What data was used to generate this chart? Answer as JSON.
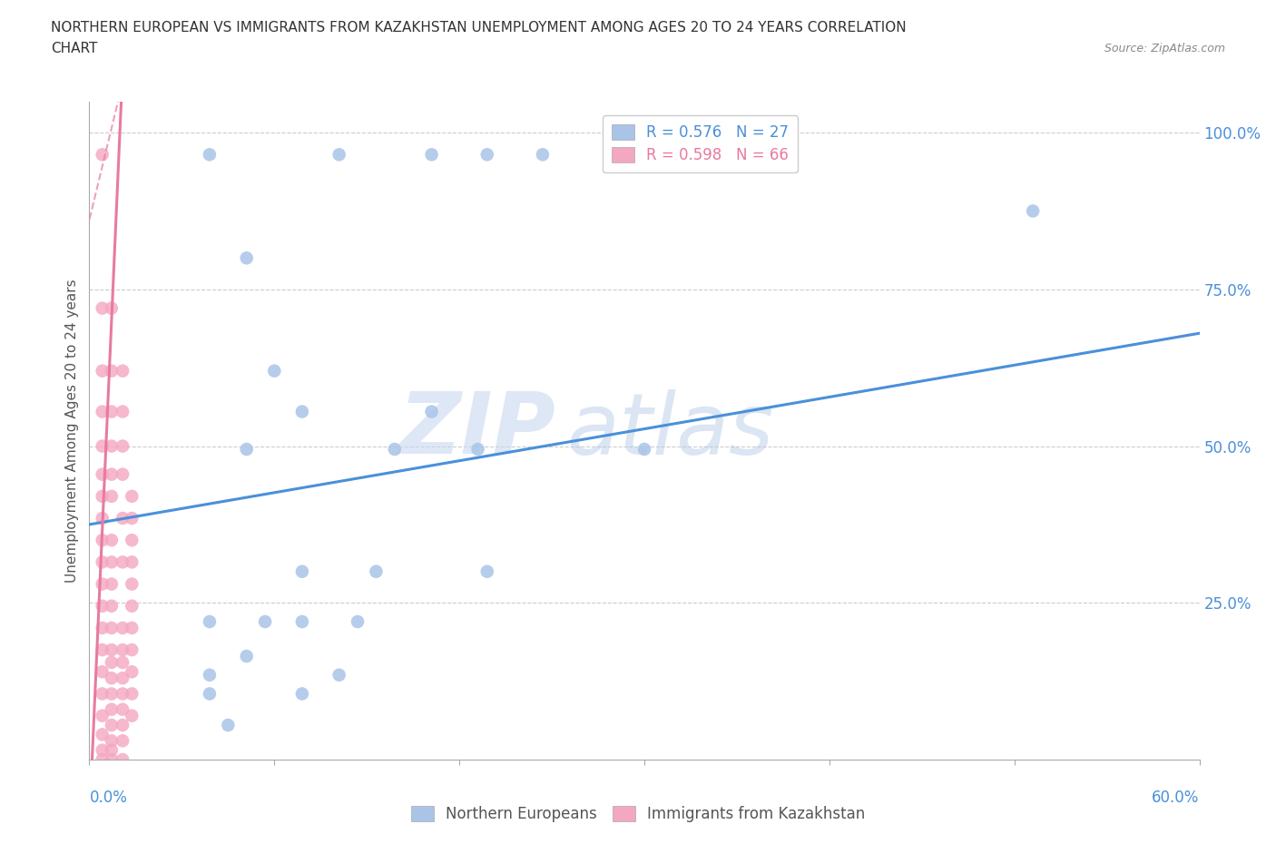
{
  "title_line1": "NORTHERN EUROPEAN VS IMMIGRANTS FROM KAZAKHSTAN UNEMPLOYMENT AMONG AGES 20 TO 24 YEARS CORRELATION",
  "title_line2": "CHART",
  "source": "Source: ZipAtlas.com",
  "ylabel": "Unemployment Among Ages 20 to 24 years",
  "right_yticks": [
    "100.0%",
    "75.0%",
    "50.0%",
    "25.0%"
  ],
  "right_ytick_vals": [
    1.0,
    0.75,
    0.5,
    0.25
  ],
  "blue_label": "Northern Europeans",
  "pink_label": "Immigrants from Kazakhstan",
  "blue_R": "R = 0.576",
  "blue_N": "N = 27",
  "pink_R": "R = 0.598",
  "pink_N": "N = 66",
  "blue_color": "#aac4e8",
  "pink_color": "#f4a7c0",
  "blue_line_color": "#4a90d9",
  "pink_line_color": "#e87aa0",
  "watermark_zip": "ZIP",
  "watermark_atlas": "atlas",
  "xlim": [
    0.0,
    0.6
  ],
  "ylim": [
    0.0,
    1.05
  ],
  "blue_line": [
    [
      0.0,
      0.375
    ],
    [
      0.6,
      0.68
    ]
  ],
  "pink_line_solid": [
    [
      0.02,
      0.38
    ],
    [
      0.02,
      0.97
    ]
  ],
  "pink_line_dashed": [
    [
      0.02,
      0.97
    ],
    [
      0.035,
      1.05
    ]
  ],
  "blue_scatter": [
    [
      0.065,
      0.965
    ],
    [
      0.135,
      0.965
    ],
    [
      0.185,
      0.965
    ],
    [
      0.215,
      0.965
    ],
    [
      0.245,
      0.965
    ],
    [
      0.085,
      0.8
    ],
    [
      0.1,
      0.62
    ],
    [
      0.115,
      0.555
    ],
    [
      0.185,
      0.555
    ],
    [
      0.085,
      0.495
    ],
    [
      0.165,
      0.495
    ],
    [
      0.21,
      0.495
    ],
    [
      0.3,
      0.495
    ],
    [
      0.115,
      0.3
    ],
    [
      0.155,
      0.3
    ],
    [
      0.215,
      0.3
    ],
    [
      0.065,
      0.22
    ],
    [
      0.095,
      0.22
    ],
    [
      0.115,
      0.22
    ],
    [
      0.145,
      0.22
    ],
    [
      0.085,
      0.165
    ],
    [
      0.065,
      0.105
    ],
    [
      0.115,
      0.105
    ],
    [
      0.075,
      0.055
    ],
    [
      0.51,
      0.875
    ],
    [
      0.065,
      0.135
    ],
    [
      0.135,
      0.135
    ]
  ],
  "pink_scatter": [
    [
      0.007,
      0.965
    ],
    [
      0.007,
      0.72
    ],
    [
      0.007,
      0.62
    ],
    [
      0.007,
      0.555
    ],
    [
      0.007,
      0.5
    ],
    [
      0.007,
      0.455
    ],
    [
      0.007,
      0.42
    ],
    [
      0.007,
      0.385
    ],
    [
      0.007,
      0.35
    ],
    [
      0.007,
      0.315
    ],
    [
      0.007,
      0.28
    ],
    [
      0.007,
      0.245
    ],
    [
      0.007,
      0.21
    ],
    [
      0.007,
      0.175
    ],
    [
      0.007,
      0.14
    ],
    [
      0.007,
      0.105
    ],
    [
      0.007,
      0.07
    ],
    [
      0.007,
      0.04
    ],
    [
      0.007,
      0.015
    ],
    [
      0.012,
      0.015
    ],
    [
      0.007,
      0.0
    ],
    [
      0.012,
      0.0
    ],
    [
      0.018,
      0.0
    ],
    [
      0.012,
      0.03
    ],
    [
      0.018,
      0.03
    ],
    [
      0.012,
      0.055
    ],
    [
      0.018,
      0.055
    ],
    [
      0.012,
      0.08
    ],
    [
      0.018,
      0.08
    ],
    [
      0.012,
      0.105
    ],
    [
      0.018,
      0.105
    ],
    [
      0.012,
      0.13
    ],
    [
      0.018,
      0.13
    ],
    [
      0.012,
      0.155
    ],
    [
      0.018,
      0.155
    ],
    [
      0.012,
      0.175
    ],
    [
      0.018,
      0.175
    ],
    [
      0.012,
      0.21
    ],
    [
      0.018,
      0.21
    ],
    [
      0.012,
      0.245
    ],
    [
      0.012,
      0.28
    ],
    [
      0.012,
      0.315
    ],
    [
      0.018,
      0.315
    ],
    [
      0.012,
      0.35
    ],
    [
      0.018,
      0.385
    ],
    [
      0.012,
      0.42
    ],
    [
      0.012,
      0.455
    ],
    [
      0.012,
      0.5
    ],
    [
      0.012,
      0.555
    ],
    [
      0.012,
      0.62
    ],
    [
      0.012,
      0.72
    ],
    [
      0.018,
      0.455
    ],
    [
      0.018,
      0.5
    ],
    [
      0.018,
      0.555
    ],
    [
      0.018,
      0.62
    ],
    [
      0.023,
      0.42
    ],
    [
      0.023,
      0.385
    ],
    [
      0.023,
      0.35
    ],
    [
      0.023,
      0.315
    ],
    [
      0.023,
      0.28
    ],
    [
      0.023,
      0.245
    ],
    [
      0.023,
      0.21
    ],
    [
      0.023,
      0.175
    ],
    [
      0.023,
      0.14
    ],
    [
      0.023,
      0.105
    ],
    [
      0.023,
      0.07
    ]
  ]
}
